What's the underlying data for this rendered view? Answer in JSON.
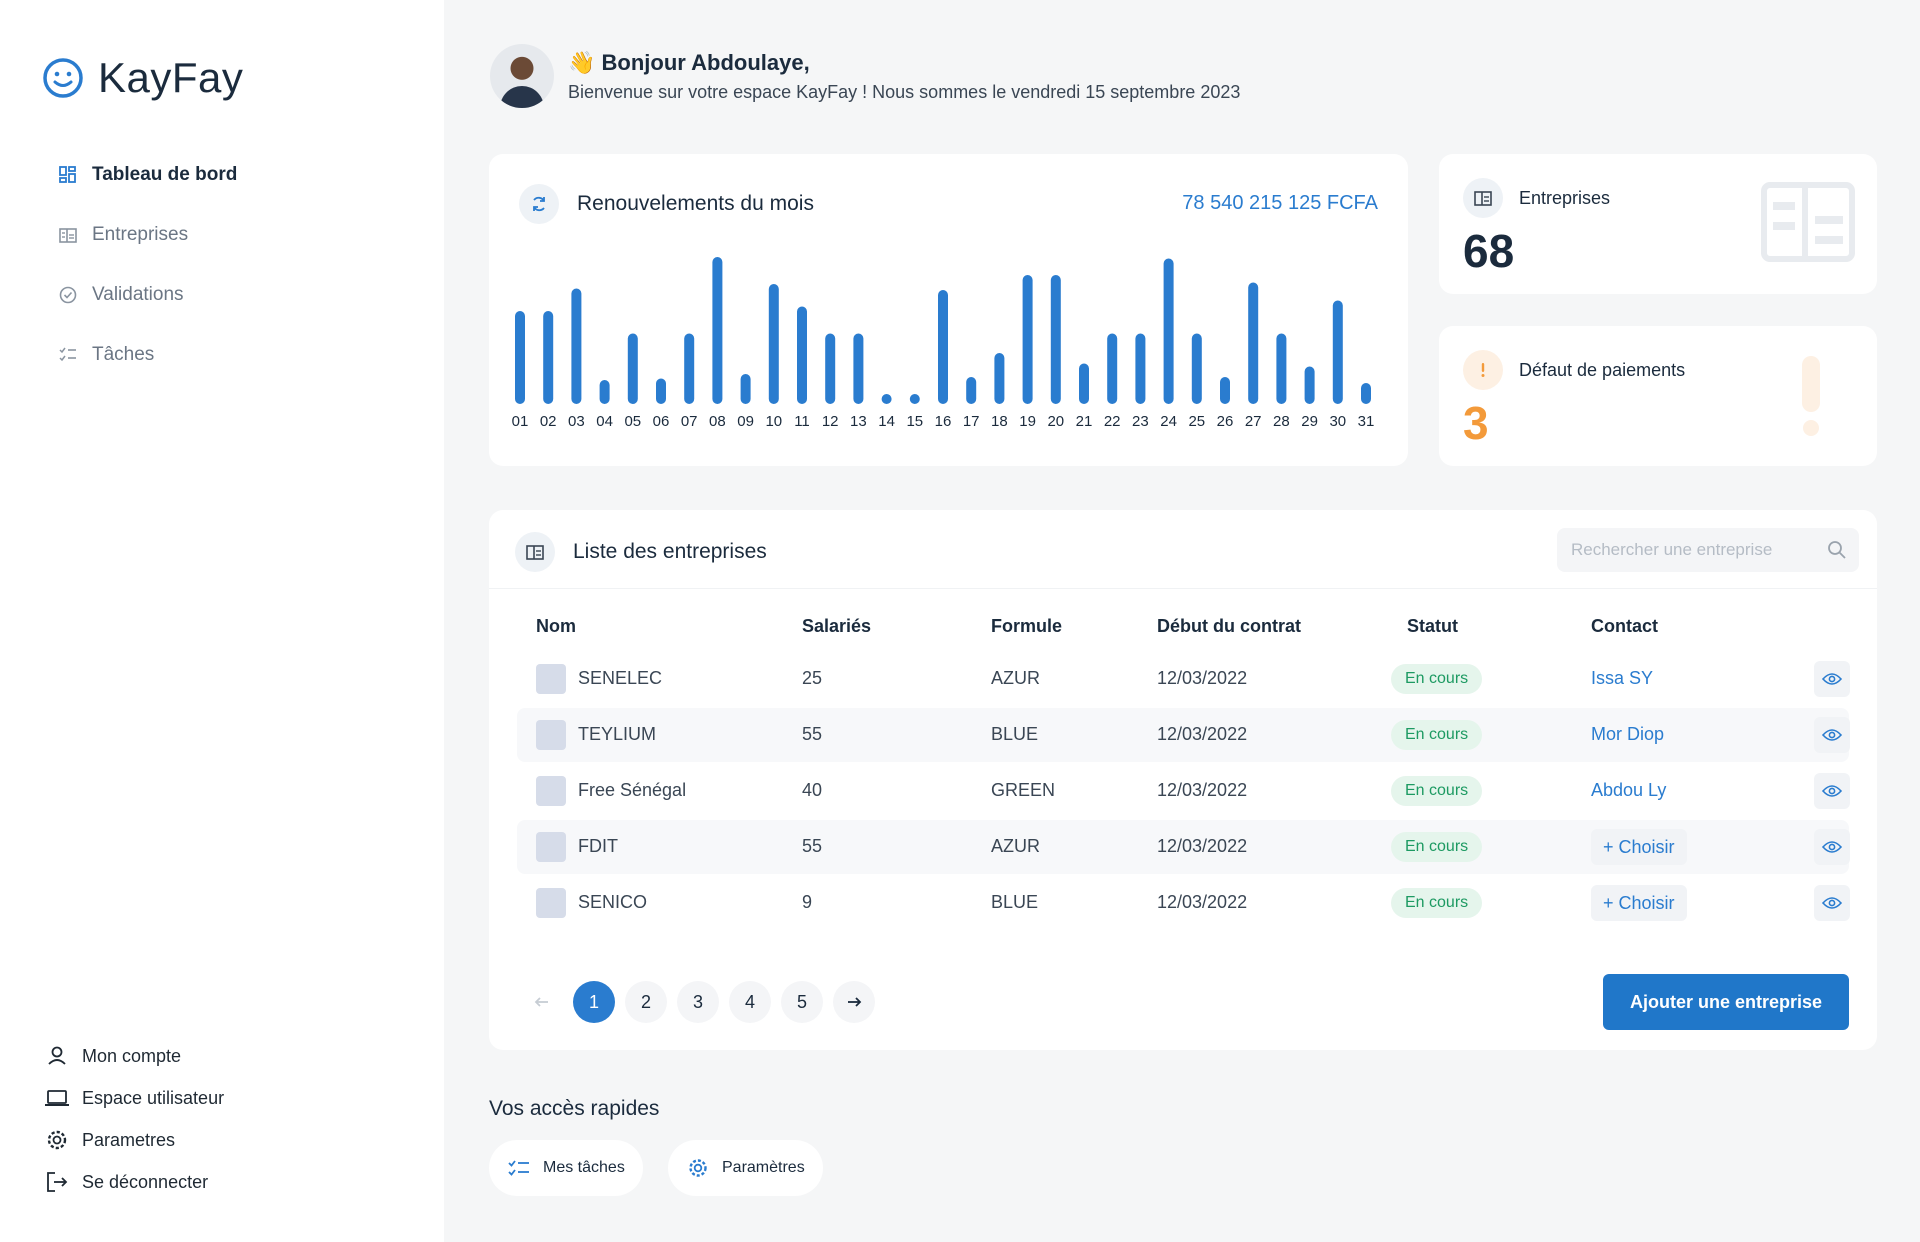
{
  "app": {
    "name": "KayFay"
  },
  "colors": {
    "accent": "#2a7ccf",
    "primary_button": "#2077c9",
    "warning": "#f39a3a",
    "success": "#1d9a62"
  },
  "sidebar": {
    "items": [
      {
        "label": "Tableau de bord",
        "icon": "dashboard-icon",
        "active": true
      },
      {
        "label": "Entreprises",
        "icon": "building-icon",
        "active": false
      },
      {
        "label": "Validations",
        "icon": "check-circle-icon",
        "active": false
      },
      {
        "label": "Tâches",
        "icon": "task-list-icon",
        "active": false
      }
    ],
    "bottom": [
      {
        "label": "Mon compte",
        "icon": "user-icon"
      },
      {
        "label": "Espace utilisateur",
        "icon": "laptop-icon"
      },
      {
        "label": "Parametres",
        "icon": "gear-icon"
      },
      {
        "label": "Se déconnecter",
        "icon": "logout-icon"
      }
    ]
  },
  "header": {
    "emoji": "👋",
    "greeting": "Bonjour Abdoulaye,",
    "subtitle": "Bienvenue sur votre espace KayFay ! Nous sommes le vendredi 15 septembre 2023"
  },
  "renewals": {
    "title": "Renouvelements du mois",
    "total": "78 540 215 125 FCFA"
  },
  "chart_data": {
    "type": "bar",
    "title": "Renouvelements du mois",
    "categories": [
      "01",
      "02",
      "03",
      "04",
      "05",
      "06",
      "07",
      "08",
      "09",
      "10",
      "11",
      "12",
      "13",
      "14",
      "15",
      "16",
      "17",
      "18",
      "19",
      "20",
      "21",
      "22",
      "23",
      "24",
      "25",
      "26",
      "27",
      "28",
      "29",
      "30",
      "31"
    ],
    "values": [
      62,
      62,
      77,
      16,
      47,
      17,
      47,
      98,
      20,
      80,
      65,
      47,
      47,
      6,
      5,
      76,
      18,
      34,
      86,
      86,
      27,
      47,
      47,
      97,
      47,
      18,
      81,
      47,
      25,
      69,
      14
    ],
    "ylim": [
      0,
      100
    ],
    "grid": false,
    "color": "#2a7ccf"
  },
  "stats": {
    "companies": {
      "label": "Entreprises",
      "value": "68"
    },
    "defaults": {
      "label": "Défaut de paiements",
      "value": "3"
    }
  },
  "table": {
    "title": "Liste des entreprises",
    "search_placeholder": "Rechercher une entreprise",
    "headers": [
      "Nom",
      "Salariés",
      "Formule",
      "Début du contrat",
      "Statut",
      "Contact"
    ],
    "rows": [
      {
        "name": "SENELEC",
        "employees": "25",
        "plan": "AZUR",
        "start": "12/03/2022",
        "status": "En cours",
        "contact": "Issa SY"
      },
      {
        "name": "TEYLIUM",
        "employees": "55",
        "plan": "BLUE",
        "start": "12/03/2022",
        "status": "En cours",
        "contact": "Mor Diop"
      },
      {
        "name": "Free Sénégal",
        "employees": "40",
        "plan": "GREEN",
        "start": "12/03/2022",
        "status": "En cours",
        "contact": "Abdou Ly"
      },
      {
        "name": "FDIT",
        "employees": "55",
        "plan": "AZUR",
        "start": "12/03/2022",
        "status": "En cours",
        "contact": "+ Choisir"
      },
      {
        "name": "SENICO",
        "employees": "9",
        "plan": "BLUE",
        "start": "12/03/2022",
        "status": "En cours",
        "contact": "+ Choisir"
      }
    ],
    "pages": [
      "1",
      "2",
      "3",
      "4",
      "5"
    ],
    "current_page": "1",
    "add_button": "Ajouter une entreprise"
  },
  "quick_access": {
    "title": "Vos accès rapides",
    "items": [
      {
        "label": "Mes tâches",
        "icon": "task-list-icon"
      },
      {
        "label": "Paramètres",
        "icon": "gear-icon"
      }
    ]
  }
}
